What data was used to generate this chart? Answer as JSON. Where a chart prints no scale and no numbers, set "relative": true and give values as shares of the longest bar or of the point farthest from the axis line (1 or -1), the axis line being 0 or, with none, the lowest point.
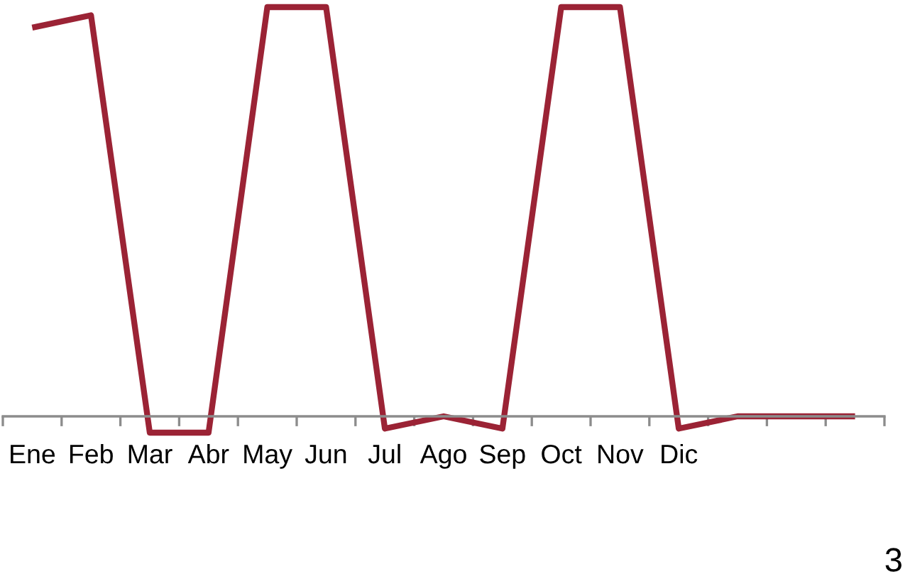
{
  "chart_data": {
    "type": "line",
    "relative": true,
    "tick_labels": "x",
    "grid": false,
    "legend": false,
    "marker": "none",
    "line_style": "solid",
    "categories": [
      "Ene",
      "Feb",
      "Mar",
      "Abr",
      "May",
      "Jun",
      "Jul",
      "Ago",
      "Sep",
      "Oct",
      "Nov",
      "Dic",
      null,
      null,
      null
    ],
    "series": [
      {
        "color": "#9b2335",
        "values": [
          0.95,
          0.98,
          -0.04,
          -0.04,
          1.0,
          1.0,
          -0.03,
          0.0,
          -0.03,
          1.0,
          1.0,
          -0.03,
          0.0,
          0.0,
          0.0
        ]
      }
    ],
    "annotations": [
      "3"
    ]
  }
}
